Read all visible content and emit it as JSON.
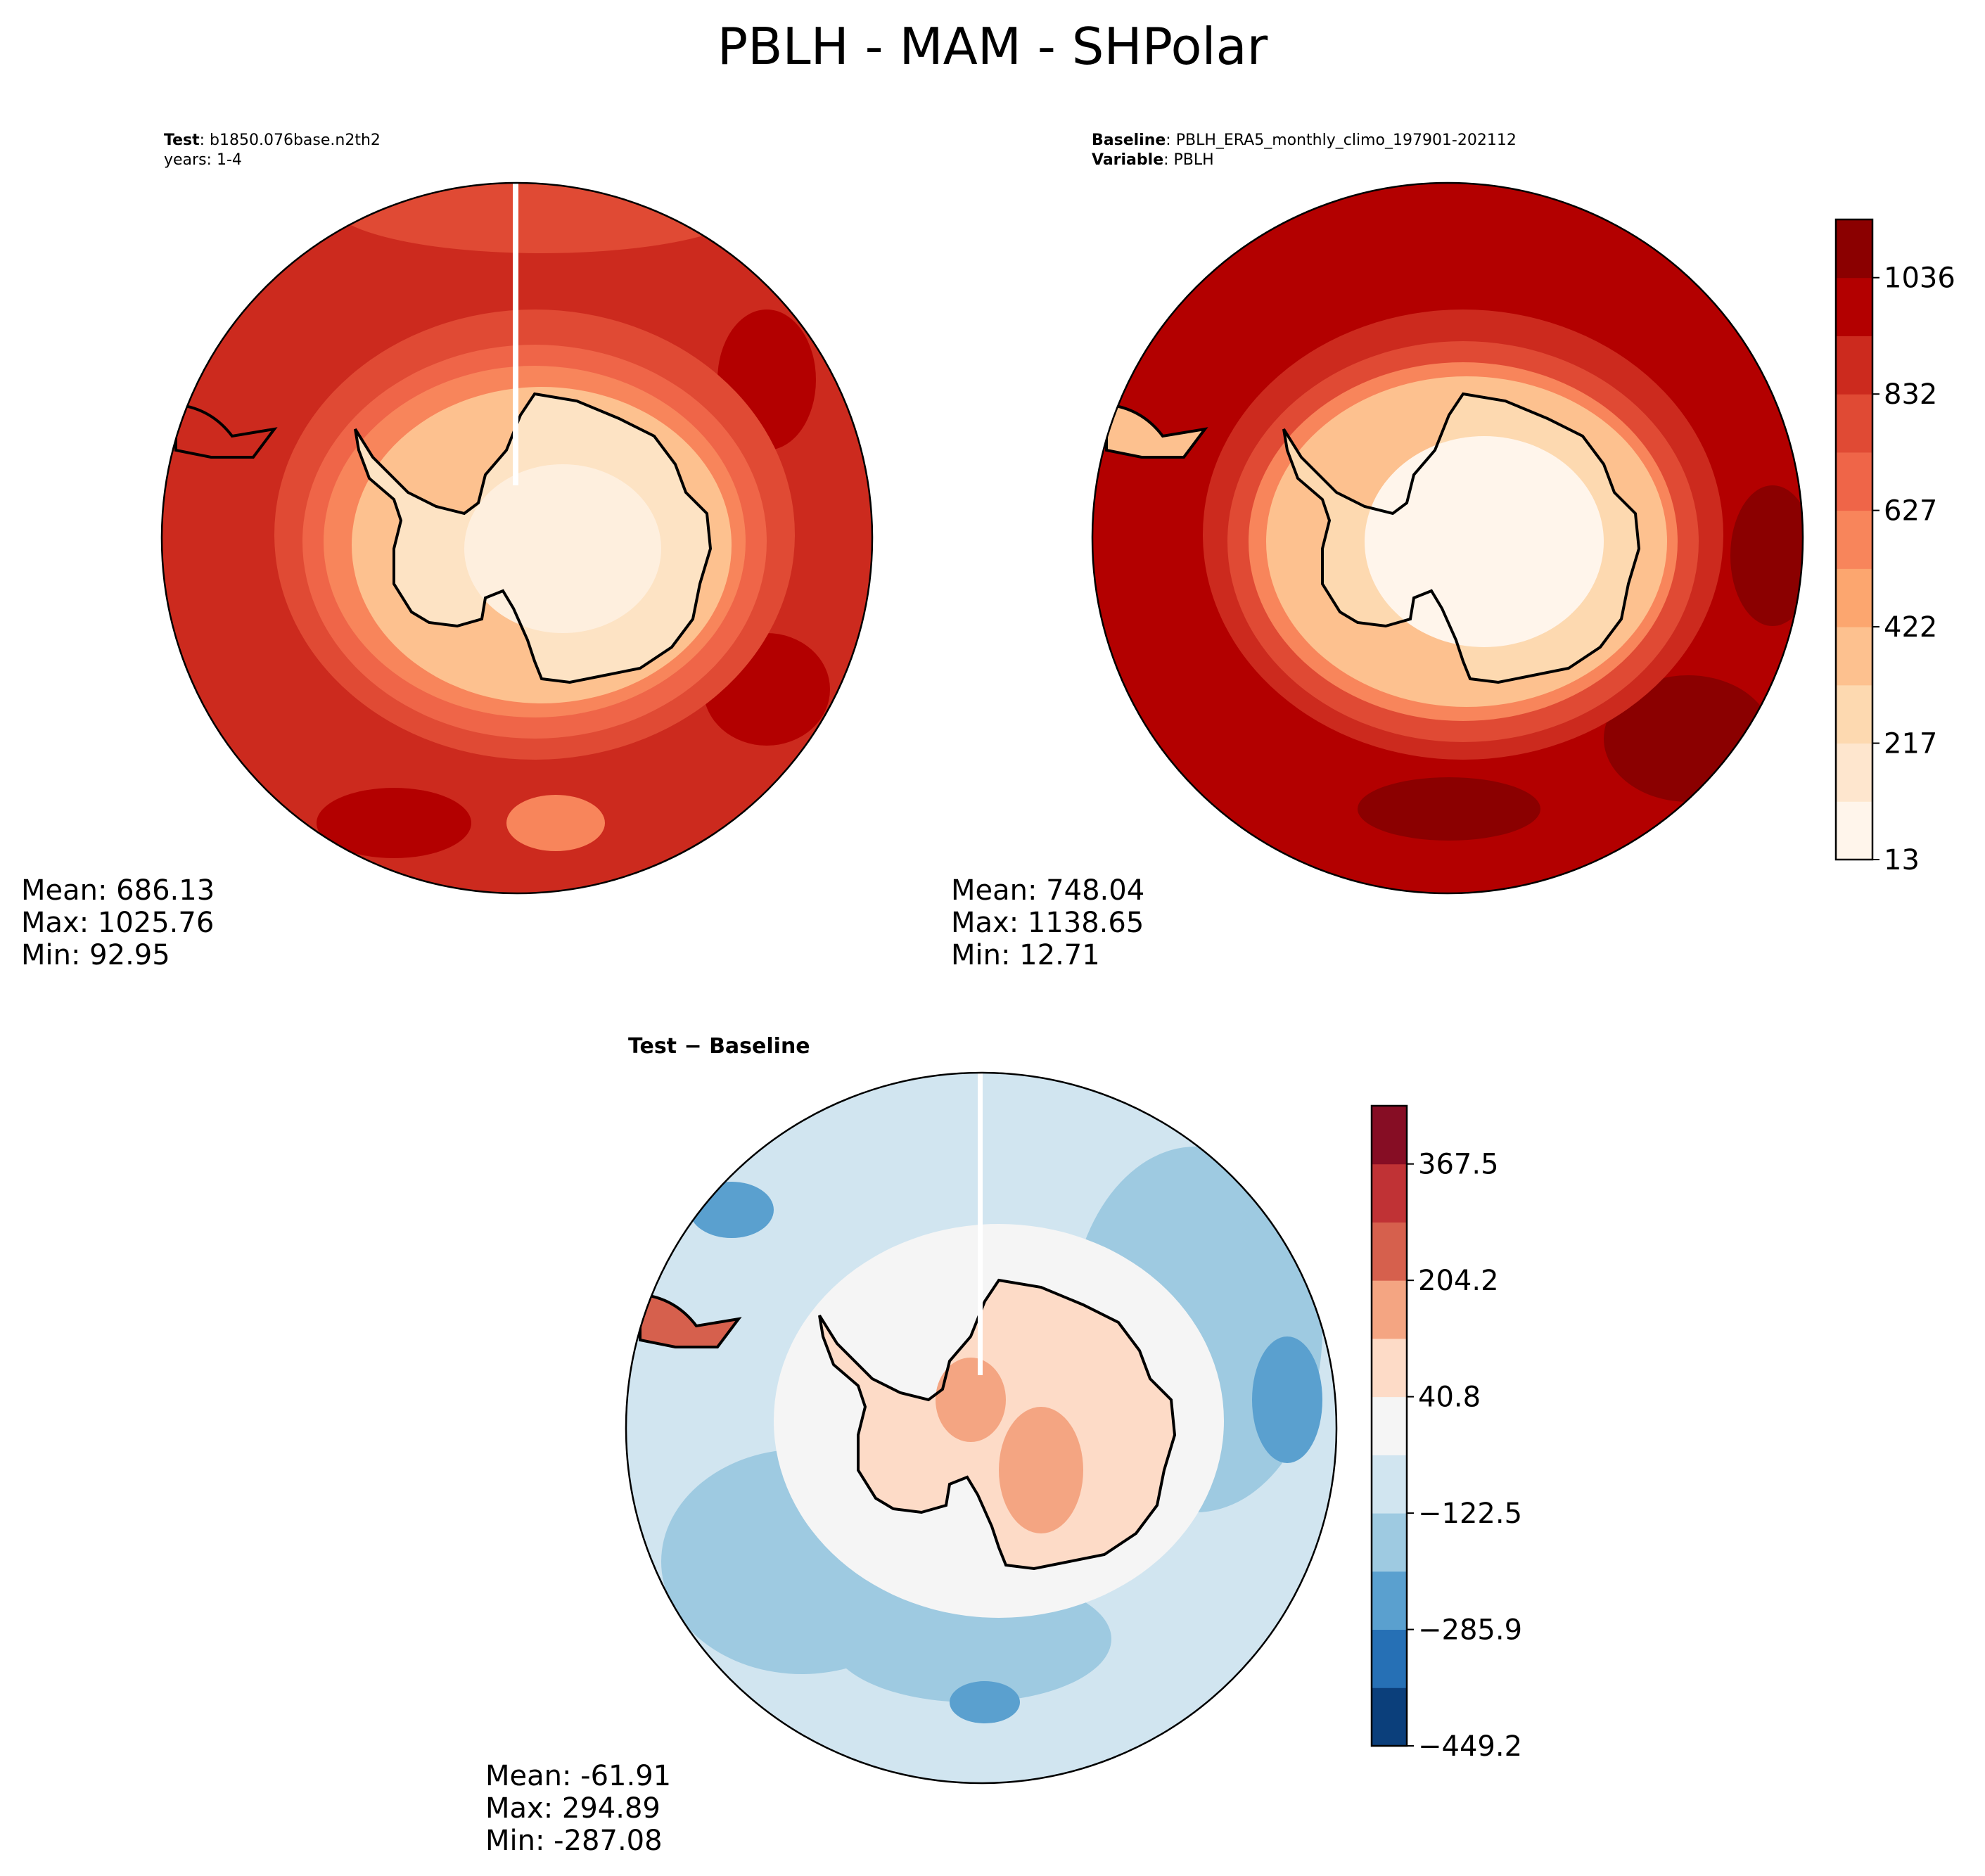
{
  "title": "PBLH - MAM - SHPolar",
  "test_panel": {
    "header_key": "Test",
    "header_value": "b1850.076base.n2th2",
    "years": "years: 1-4",
    "stats": {
      "mean": "Mean: 686.13",
      "max": "Max: 1025.76",
      "min": "Min: 92.95"
    }
  },
  "baseline_panel": {
    "header_key": "Baseline",
    "header_value": "PBLH_ERA5_monthly_climo_197901-202112",
    "variable_key": "Variable",
    "variable_value": "PBLH",
    "stats": {
      "mean": "Mean: 748.04",
      "max": "Max: 1138.65",
      "min": "Min: 12.71"
    }
  },
  "diff_panel": {
    "title_left": "Test",
    "title_sep": " − ",
    "title_right": "Baseline",
    "stats": {
      "mean": "Mean: -61.91",
      "max": "Max: 294.89",
      "min": "Min: -287.08"
    }
  },
  "colorbar_main": {
    "ticks": [
      "13",
      "217",
      "422",
      "627",
      "832",
      "1036"
    ],
    "colors": [
      "#fff5eb",
      "#fee6ce",
      "#fdd9b0",
      "#fdc18f",
      "#fca66f",
      "#f8855b",
      "#ef6548",
      "#e04a34",
      "#cc2a1e",
      "#b30000",
      "#8b0000"
    ]
  },
  "colorbar_diff": {
    "ticks": [
      "−449.2",
      "−285.9",
      "−122.5",
      "40.8",
      "204.2",
      "367.5"
    ],
    "colors": [
      "#0b3f7b",
      "#2670b5",
      "#5aa0cf",
      "#9ecae1",
      "#d1e5f0",
      "#f5f5f5",
      "#fddbc7",
      "#f4a582",
      "#d6604d",
      "#c03235",
      "#860d24"
    ]
  },
  "map_colors": {
    "land_main": "#fde3c4",
    "land_main_inner": "#feefde",
    "ring_a": "#fdc18f",
    "ring_b": "#f8855b",
    "ocean_test": "#cc2a1e",
    "ocean_base": "#b30000",
    "diff_ocean": "#d1e5f0",
    "diff_ocean2": "#9ecae1",
    "diff_land": "#fddbc7",
    "diff_neutral": "#f5f5f5"
  }
}
